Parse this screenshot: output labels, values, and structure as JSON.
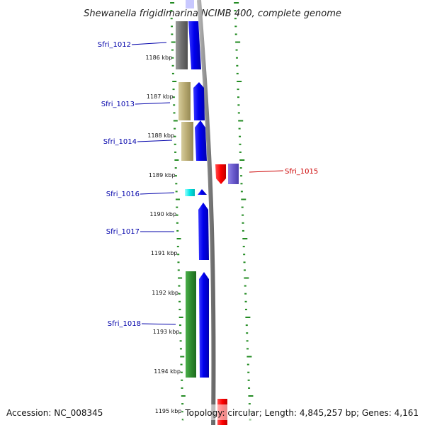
{
  "title": "Shewanella frigidimarina NCIMB 400, complete genome",
  "accession_text": "Accession: NC_008345",
  "footer_text": "Topology: circular; Length: 4,845,257 bp; Genes: 4,161",
  "kbp_labels": [
    "1186 kbp",
    "1187 kbp",
    "1188 kbp",
    "1189 kbp",
    "1190 kbp",
    "1191 kbp",
    "1192 kbp",
    "1193 kbp",
    "1194 kbp",
    "1195 kbp"
  ],
  "genes": [
    {
      "name": "Sfri_1012",
      "color": "#0000aa"
    },
    {
      "name": "Sfri_1013",
      "color": "#0000aa"
    },
    {
      "name": "Sfri_1014",
      "color": "#0000aa"
    },
    {
      "name": "Sfri_1015",
      "color": "#cc0000"
    },
    {
      "name": "Sfri_1016",
      "color": "#0000aa"
    },
    {
      "name": "Sfri_1017",
      "color": "#0000aa"
    },
    {
      "name": "Sfri_1018",
      "color": "#0000aa"
    }
  ],
  "colors": {
    "tick_green": "#228b22",
    "backbone_gray": "#8a8a8a",
    "cds_blue": "#0000ee",
    "cds_red": "#ff0000",
    "cds_purple": "#6a5acd",
    "cog_gray": "#707070",
    "cog_khaki": "#bdb07a",
    "cog_cyan": "#00e5e5",
    "cog_green": "#2e8b2e"
  }
}
